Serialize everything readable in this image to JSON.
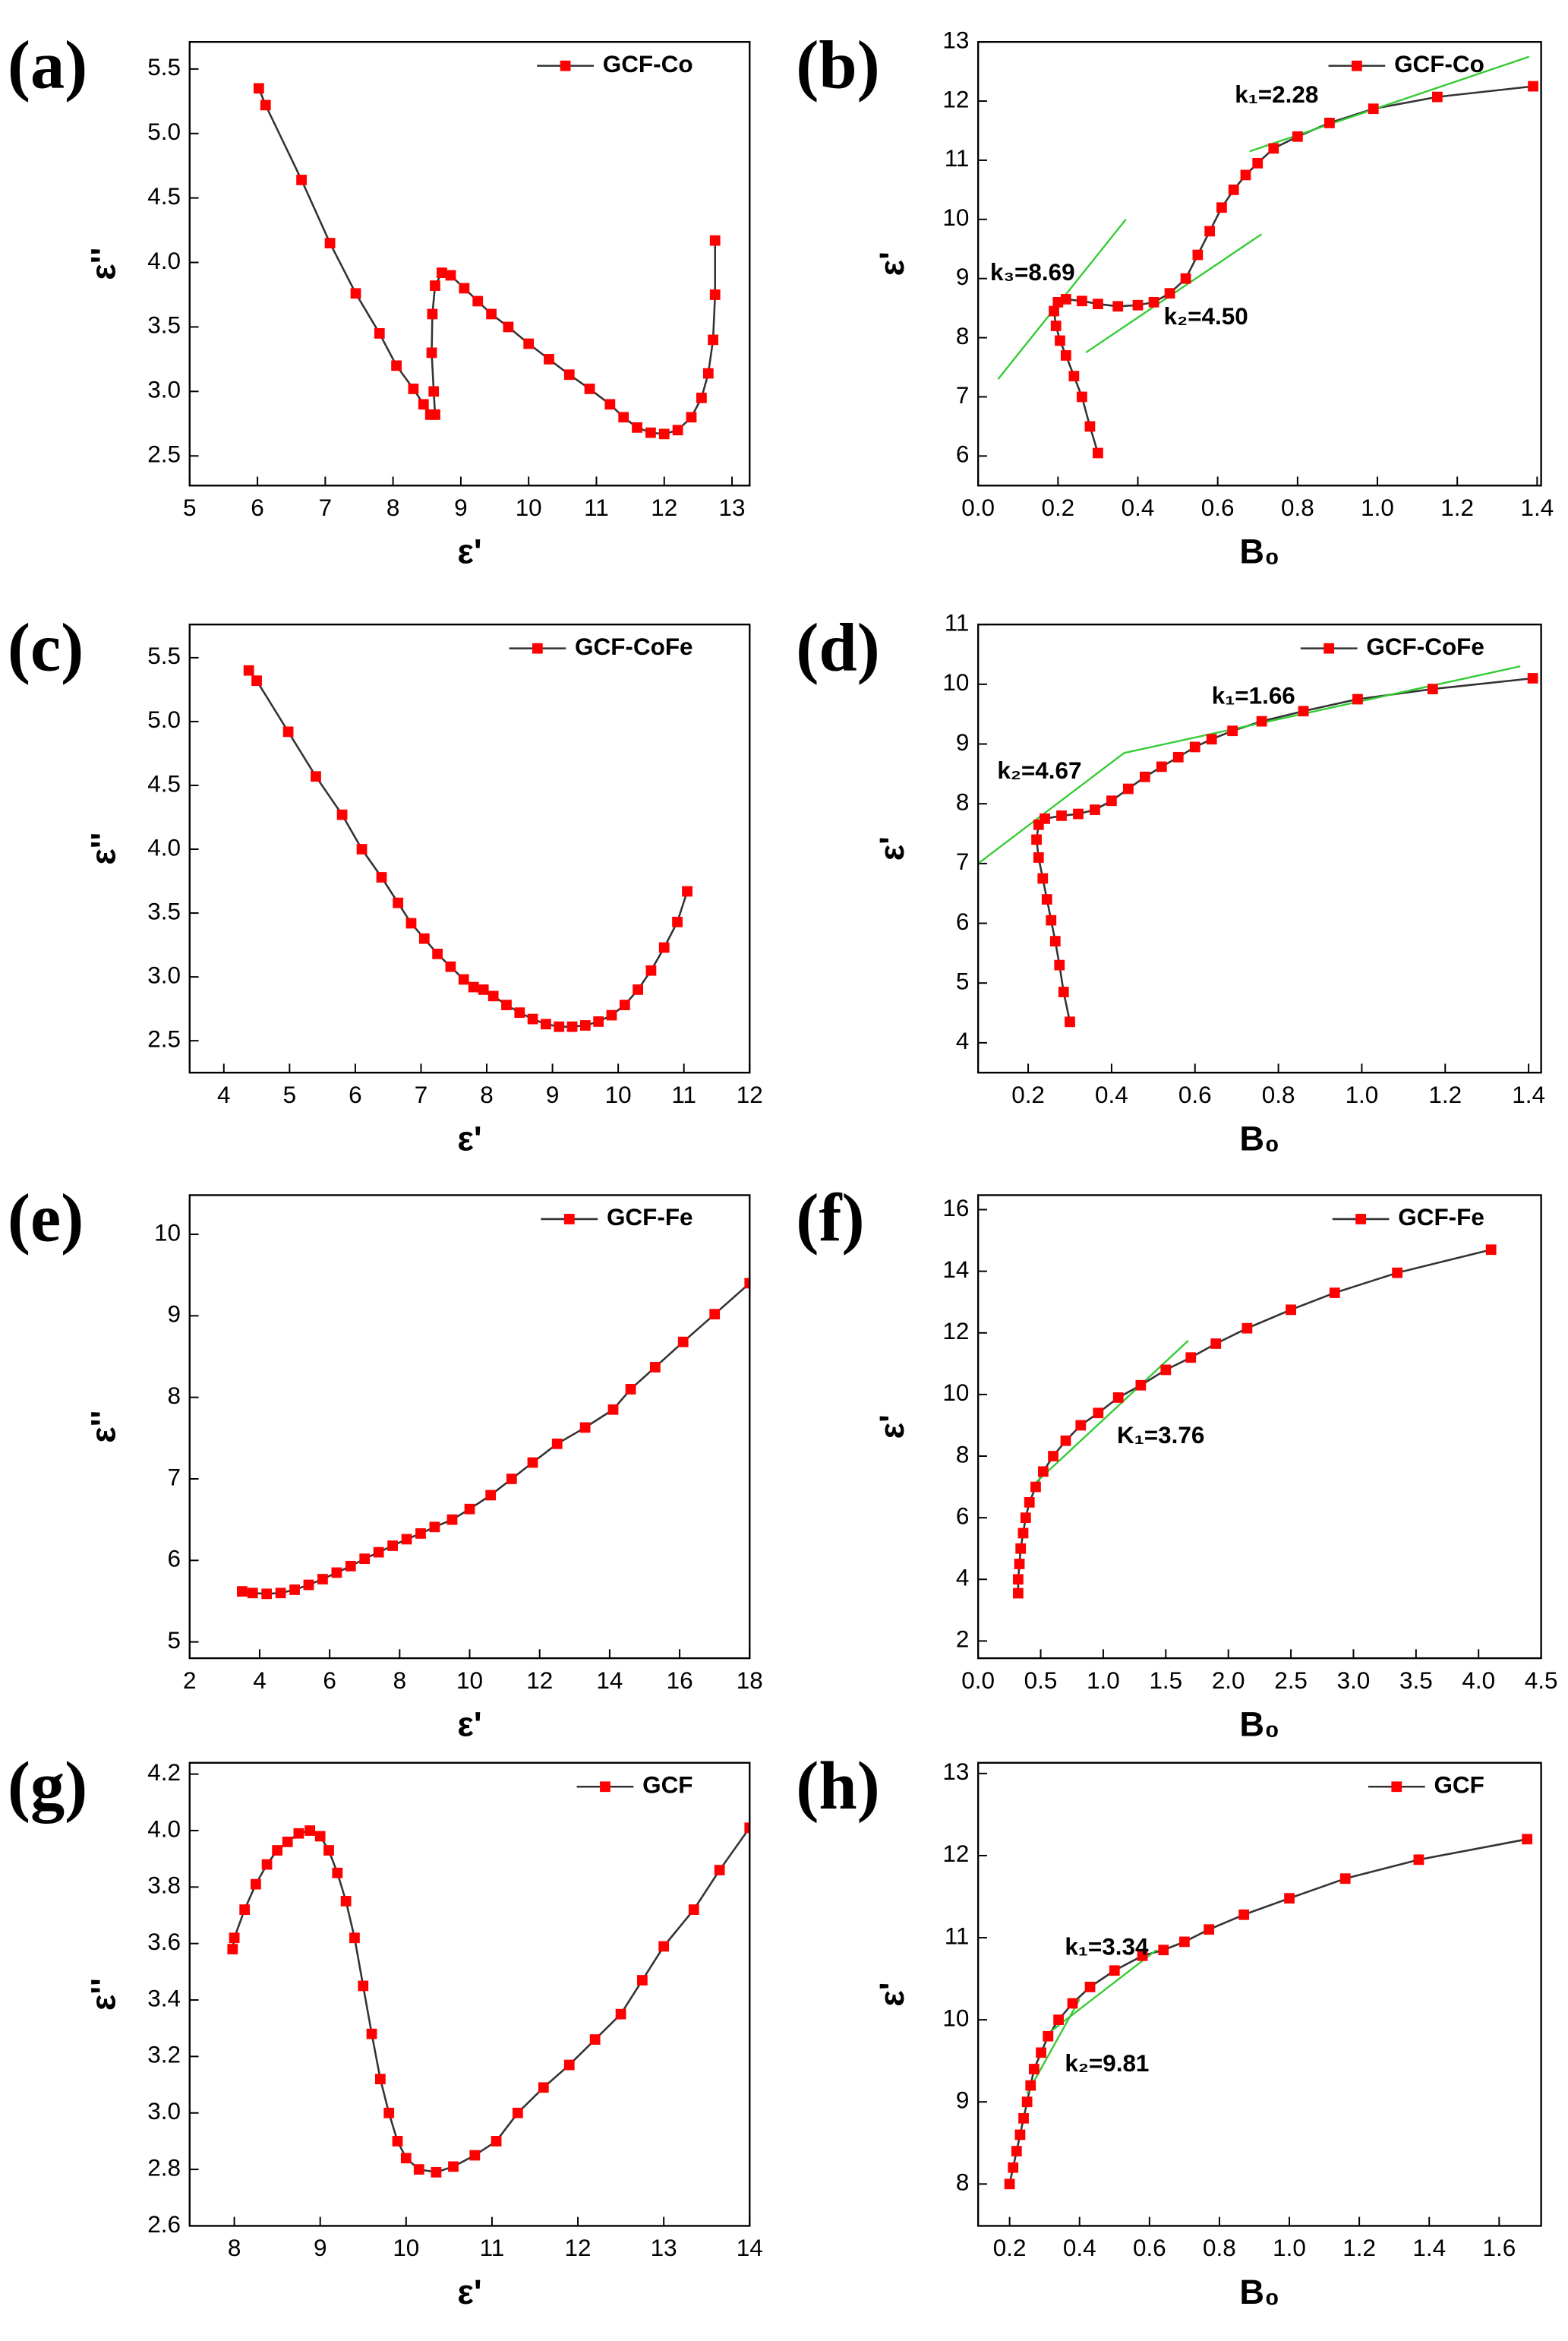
{
  "chart_data": [
    {
      "type": "line",
      "panel": "(a)",
      "xlabel": "ε'",
      "ylabel": "ε''",
      "legend": "upper right",
      "xlim": [
        5,
        13.26
      ],
      "ylim": [
        2.27,
        5.71
      ],
      "xticks": [
        5,
        6,
        7,
        8,
        9,
        10,
        11,
        12,
        13
      ],
      "yticks": [
        2.5,
        {
          "value": 3,
          "label": "3.0"
        },
        3.5,
        {
          "value": 4,
          "label": "4.0"
        },
        4.5,
        {
          "value": 5,
          "label": "5.0"
        },
        5.5
      ],
      "x": [
        6.02,
        6.12,
        6.65,
        7.07,
        7.45,
        7.8,
        8.05,
        8.3,
        8.45,
        8.55,
        8.62,
        8.6,
        8.57,
        8.58,
        8.62,
        8.72,
        8.85,
        9.05,
        9.25,
        9.45,
        9.7,
        10.0,
        10.3,
        10.6,
        10.9,
        11.2,
        11.4,
        11.6,
        11.8,
        12.0,
        12.2,
        12.4,
        12.55,
        12.65,
        12.72,
        12.75,
        12.75
      ],
      "series": [
        {
          "name": "GCF-Co",
          "color": "#ff0000",
          "line_color": "#333333",
          "values": [
            5.35,
            5.22,
            4.64,
            4.15,
            3.76,
            3.45,
            3.2,
            3.02,
            2.9,
            2.82,
            2.82,
            3.0,
            3.3,
            3.6,
            3.82,
            3.92,
            3.9,
            3.8,
            3.7,
            3.6,
            3.5,
            3.37,
            3.25,
            3.13,
            3.02,
            2.9,
            2.8,
            2.72,
            2.68,
            2.67,
            2.7,
            2.8,
            2.95,
            3.14,
            3.4,
            3.75,
            4.17
          ]
        }
      ],
      "tangent_lines": [],
      "annotations": []
    },
    {
      "type": "line",
      "panel": "(b)",
      "xlabel": "B₀",
      "ylabel": "ε'",
      "legend": "upper right",
      "xlim": [
        0,
        1.41
      ],
      "ylim": [
        5.5,
        13
      ],
      "xticks": [
        {
          "value": 0,
          "label": "0.0"
        },
        0.2,
        0.4,
        0.6,
        0.8,
        {
          "value": 1,
          "label": "1.0"
        },
        1.2,
        1.4
      ],
      "yticks": [
        6,
        7,
        8,
        9,
        10,
        11,
        12,
        13
      ],
      "x": [
        0.3,
        0.28,
        0.26,
        0.24,
        0.22,
        0.205,
        0.195,
        0.19,
        0.2,
        0.22,
        0.26,
        0.3,
        0.35,
        0.4,
        0.44,
        0.48,
        0.52,
        0.55,
        0.58,
        0.61,
        0.64,
        0.67,
        0.7,
        0.74,
        0.8,
        0.88,
        0.99,
        1.15,
        1.39
      ],
      "series": [
        {
          "name": "GCF-Co",
          "color": "#ff0000",
          "line_color": "#333333",
          "values": [
            6.05,
            6.5,
            7.0,
            7.35,
            7.7,
            7.95,
            8.2,
            8.45,
            8.6,
            8.65,
            8.62,
            8.57,
            8.53,
            8.55,
            8.6,
            8.75,
            9.0,
            9.4,
            9.8,
            10.2,
            10.5,
            10.75,
            10.95,
            11.2,
            11.4,
            11.63,
            11.87,
            12.07,
            12.25
          ]
        }
      ],
      "tangent_lines": [
        {
          "color": "#33cc33",
          "x": [
            0.68,
            1.38
          ],
          "y": [
            11.15,
            12.75
          ]
        },
        {
          "color": "#33cc33",
          "x": [
            0.05,
            0.37
          ],
          "y": [
            7.3,
            10.0
          ]
        },
        {
          "color": "#33cc33",
          "x": [
            0.27,
            0.71
          ],
          "y": [
            7.75,
            9.75
          ]
        }
      ],
      "annotations": [
        {
          "text": "k₁=2.28",
          "x": 0.643,
          "y": 12.08
        },
        {
          "text": "k₃=8.69",
          "x": 0.03,
          "y": 9.08
        },
        {
          "text": "k₂=4.50",
          "x": 0.465,
          "y": 8.33
        }
      ]
    },
    {
      "type": "line",
      "panel": "(c)",
      "xlabel": "ε'",
      "ylabel": "ε''",
      "legend": "upper right",
      "xlim": [
        3.48,
        12
      ],
      "ylim": [
        2.25,
        5.76
      ],
      "xticks": [
        4,
        5,
        6,
        7,
        8,
        9,
        10,
        11,
        12
      ],
      "yticks": [
        2.5,
        {
          "value": 3,
          "label": "3.0"
        },
        3.5,
        {
          "value": 4,
          "label": "4.0"
        },
        4.5,
        {
          "value": 5,
          "label": "5.0"
        },
        5.5
      ],
      "x": [
        4.38,
        4.5,
        4.98,
        5.4,
        5.8,
        6.1,
        6.4,
        6.65,
        6.85,
        7.05,
        7.25,
        7.45,
        7.65,
        7.8,
        7.95,
        8.1,
        8.3,
        8.5,
        8.7,
        8.9,
        9.1,
        9.3,
        9.5,
        9.7,
        9.9,
        10.1,
        10.3,
        10.5,
        10.7,
        10.9,
        11.05
      ],
      "series": [
        {
          "name": "GCF-CoFe",
          "color": "#ff0000",
          "line_color": "#333333",
          "values": [
            5.4,
            5.32,
            4.92,
            4.57,
            4.27,
            4.0,
            3.78,
            3.58,
            3.42,
            3.3,
            3.18,
            3.08,
            2.98,
            2.92,
            2.9,
            2.85,
            2.78,
            2.72,
            2.67,
            2.63,
            2.61,
            2.61,
            2.62,
            2.65,
            2.7,
            2.78,
            2.9,
            3.05,
            3.23,
            3.43,
            3.67
          ]
        }
      ],
      "tangent_lines": [],
      "annotations": []
    },
    {
      "type": "line",
      "panel": "(d)",
      "xlabel": "B₀",
      "ylabel": "ε'",
      "legend": "upper right",
      "xlim": [
        0.08,
        1.43
      ],
      "ylim": [
        3.5,
        11
      ],
      "xticks": [
        0.2,
        0.4,
        0.6,
        0.8,
        {
          "value": 1,
          "label": "1.0"
        },
        1.2,
        1.4
      ],
      "yticks": [
        4,
        5,
        6,
        7,
        8,
        9,
        10,
        11
      ],
      "x": [
        0.3,
        0.285,
        0.275,
        0.265,
        0.255,
        0.245,
        0.235,
        0.225,
        0.22,
        0.225,
        0.24,
        0.28,
        0.32,
        0.36,
        0.4,
        0.44,
        0.48,
        0.52,
        0.56,
        0.6,
        0.64,
        0.69,
        0.76,
        0.86,
        0.99,
        1.17,
        1.41
      ],
      "series": [
        {
          "name": "GCF-CoFe",
          "color": "#ff0000",
          "line_color": "#333333",
          "values": [
            4.35,
            4.85,
            5.3,
            5.7,
            6.05,
            6.4,
            6.75,
            7.1,
            7.4,
            7.65,
            7.75,
            7.8,
            7.83,
            7.9,
            8.05,
            8.25,
            8.45,
            8.62,
            8.78,
            8.95,
            9.08,
            9.22,
            9.38,
            9.55,
            9.75,
            9.92,
            10.1
          ]
        }
      ],
      "tangent_lines": [
        {
          "color": "#33cc33",
          "x": [
            0.08,
            0.43
          ],
          "y": [
            7.0,
            8.85
          ]
        },
        {
          "color": "#33cc33",
          "x": [
            0.43,
            1.38
          ],
          "y": [
            8.85,
            10.3
          ]
        }
      ],
      "annotations": [
        {
          "text": "k₁=1.66",
          "x": 0.64,
          "y": 9.78
        },
        {
          "text": "k₂=4.67",
          "x": 0.126,
          "y": 8.53
        }
      ]
    },
    {
      "type": "line",
      "panel": "(e)",
      "xlabel": "ε'",
      "ylabel": "ε''",
      "legend": "upper right",
      "xlim": [
        2,
        18
      ],
      "ylim": [
        4.8,
        10.48
      ],
      "xticks": [
        2,
        4,
        6,
        8,
        10,
        12,
        14,
        16,
        18
      ],
      "yticks": [
        5,
        6,
        7,
        8,
        9,
        10
      ],
      "x": [
        3.5,
        3.8,
        4.2,
        4.6,
        5.0,
        5.4,
        5.8,
        6.2,
        6.6,
        7.0,
        7.4,
        7.8,
        8.2,
        8.6,
        9.0,
        9.5,
        10.0,
        10.6,
        11.2,
        11.8,
        12.5,
        13.3,
        14.1,
        14.6,
        15.3,
        16.1,
        17.0,
        18.0
      ],
      "series": [
        {
          "name": "GCF-Fe",
          "color": "#ff0000",
          "line_color": "#333333",
          "values": [
            5.62,
            5.6,
            5.59,
            5.6,
            5.64,
            5.7,
            5.77,
            5.85,
            5.93,
            6.02,
            6.1,
            6.18,
            6.26,
            6.33,
            6.41,
            6.5,
            6.63,
            6.8,
            7.0,
            7.2,
            7.43,
            7.63,
            7.85,
            8.1,
            8.37,
            8.68,
            9.02,
            9.4
          ]
        }
      ],
      "tangent_lines": [],
      "annotations": []
    },
    {
      "type": "line",
      "panel": "(f)",
      "xlabel": "B₀",
      "ylabel": "ε'",
      "legend": "upper right",
      "xlim": [
        0,
        4.5
      ],
      "ylim": [
        1.44,
        16.47
      ],
      "xticks": [
        {
          "value": 0,
          "label": "0.0"
        },
        0.5,
        {
          "value": 1,
          "label": "1.0"
        },
        1.5,
        {
          "value": 2,
          "label": "2.0"
        },
        2.5,
        {
          "value": 3,
          "label": "3.0"
        },
        3.5,
        {
          "value": 4,
          "label": "4.0"
        },
        4.5
      ],
      "yticks": [
        2,
        4,
        6,
        8,
        10,
        12,
        14,
        16
      ],
      "x": [
        0.32,
        0.32,
        0.33,
        0.34,
        0.36,
        0.38,
        0.41,
        0.46,
        0.52,
        0.6,
        0.7,
        0.82,
        0.96,
        1.12,
        1.3,
        1.5,
        1.7,
        1.9,
        2.15,
        2.5,
        2.85,
        3.35,
        4.1
      ],
      "series": [
        {
          "name": "GCF-Fe",
          "color": "#ff0000",
          "line_color": "#333333",
          "values": [
            3.55,
            4.0,
            4.5,
            5.0,
            5.5,
            6.0,
            6.5,
            7.0,
            7.5,
            8.0,
            8.5,
            9.0,
            9.4,
            9.9,
            10.3,
            10.8,
            11.2,
            11.65,
            12.15,
            12.75,
            13.3,
            13.95,
            14.7
          ]
        }
      ],
      "tangent_lines": [
        {
          "color": "#33cc33",
          "x": [
            0.45,
            1.68
          ],
          "y": [
            7.1,
            11.75
          ]
        }
      ],
      "annotations": [
        {
          "text": "K₁=3.76",
          "x": 1.11,
          "y": 8.63
        }
      ]
    },
    {
      "type": "line",
      "panel": "(g)",
      "xlabel": "ε'",
      "ylabel": "ε''",
      "legend": "upper right",
      "xlim": [
        7.48,
        14
      ],
      "ylim": [
        2.6,
        4.24
      ],
      "xticks": [
        8,
        9,
        10,
        11,
        12,
        13,
        14
      ],
      "yticks": [
        2.6,
        2.8,
        {
          "value": 3,
          "label": "3.0"
        },
        3.2,
        3.4,
        3.6,
        3.8,
        {
          "value": 4,
          "label": "4.0"
        },
        4.2
      ],
      "x": [
        7.98,
        8.0,
        8.12,
        8.25,
        8.38,
        8.5,
        8.62,
        8.75,
        8.88,
        9.0,
        9.1,
        9.2,
        9.3,
        9.4,
        9.5,
        9.6,
        9.7,
        9.8,
        9.9,
        10.0,
        10.15,
        10.35,
        10.55,
        10.8,
        11.05,
        11.3,
        11.6,
        11.9,
        12.2,
        12.5,
        12.75,
        13.0,
        13.35,
        13.65,
        14.0
      ],
      "series": [
        {
          "name": "GCF",
          "color": "#ff0000",
          "line_color": "#333333",
          "values": [
            3.58,
            3.62,
            3.72,
            3.81,
            3.88,
            3.93,
            3.96,
            3.99,
            4.0,
            3.98,
            3.93,
            3.85,
            3.75,
            3.62,
            3.45,
            3.28,
            3.12,
            3.0,
            2.9,
            2.84,
            2.8,
            2.79,
            2.81,
            2.85,
            2.9,
            3.0,
            3.09,
            3.17,
            3.26,
            3.35,
            3.47,
            3.59,
            3.72,
            3.86,
            4.01
          ]
        }
      ],
      "tangent_lines": [],
      "annotations": []
    },
    {
      "type": "line",
      "panel": "(h)",
      "xlabel": "B₀",
      "ylabel": "ε'",
      "legend": "upper right",
      "xlim": [
        0.11,
        1.72
      ],
      "ylim": [
        7.49,
        13.13
      ],
      "xticks": [
        0.2,
        0.4,
        0.6,
        0.8,
        {
          "value": 1,
          "label": "1.0"
        },
        1.2,
        1.4,
        1.6
      ],
      "yticks": [
        8,
        9,
        10,
        11,
        12,
        13
      ],
      "x": [
        0.2,
        0.21,
        0.22,
        0.23,
        0.24,
        0.25,
        0.26,
        0.27,
        0.29,
        0.31,
        0.34,
        0.38,
        0.43,
        0.5,
        0.58,
        0.64,
        0.7,
        0.77,
        0.87,
        1.0,
        1.16,
        1.37,
        1.68
      ],
      "series": [
        {
          "name": "GCF",
          "color": "#ff0000",
          "line_color": "#333333",
          "values": [
            8.0,
            8.2,
            8.4,
            8.6,
            8.8,
            9.0,
            9.2,
            9.4,
            9.6,
            9.8,
            10.0,
            10.2,
            10.4,
            10.6,
            10.78,
            10.85,
            10.95,
            11.1,
            11.28,
            11.48,
            11.72,
            11.95,
            12.2
          ]
        }
      ],
      "tangent_lines": [
        {
          "color": "#33cc33",
          "x": [
            0.3,
            0.62
          ],
          "y": [
            9.8,
            10.85
          ]
        },
        {
          "color": "#33cc33",
          "x": [
            0.25,
            0.4
          ],
          "y": [
            9.1,
            10.25
          ]
        }
      ],
      "annotations": [
        {
          "text": "k₁=3.34",
          "x": 0.358,
          "y": 10.87
        },
        {
          "text": "k₂=9.81",
          "x": 0.358,
          "y": 9.45
        }
      ]
    }
  ]
}
